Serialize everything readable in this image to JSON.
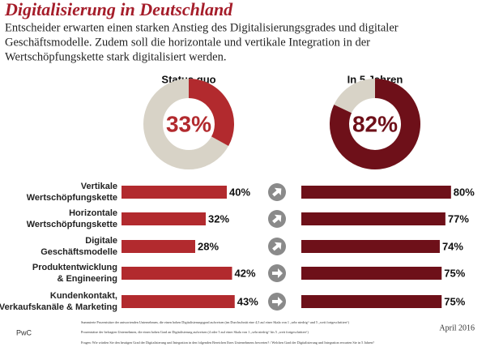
{
  "chart_data": {
    "type": "bar",
    "title": "Digitalisierung in Deutschland",
    "subtitle": [
      "Entscheider erwarten einen starken Anstieg des Digitalisierungsgrades  und digitaler",
      "Geschäftsmodelle. Zudem soll die horizontale und vertikale Integration in der",
      "Wertschöpfungskette stark digitalisiert werden."
    ],
    "categories": [
      [
        "Vertikale",
        "Wertschöpfungskette"
      ],
      [
        "Horizontale",
        "Wertschöpfungskette"
      ],
      [
        "Digitale",
        "Geschäftsmodelle"
      ],
      [
        "Produktentwicklung",
        "& Engineering"
      ],
      [
        "Kundenkontakt,",
        "Verkaufskanäle & Marketing"
      ]
    ],
    "donut_background": "#d8d3c7",
    "series": [
      {
        "name": "Status quo",
        "color": "#b22a2e",
        "total": 33,
        "total_label": "33%",
        "values": [
          40,
          32,
          28,
          42,
          43
        ],
        "value_labels": [
          "40%",
          "32%",
          "28%",
          "42%",
          "43%"
        ]
      },
      {
        "name": "In 5 Jahren",
        "color": "#6e1019",
        "total": 82,
        "total_label": "82%",
        "values": [
          80,
          77,
          74,
          75,
          75
        ],
        "value_labels": [
          "80%",
          "77%",
          "74%",
          "75%",
          "75%"
        ]
      }
    ],
    "footnotes": [
      "Summierte Prozentsätze der antwortenden Unternehmen, die einen hohen Digitalisierungsgrad aufweisen (im Durchschnitt eine 4,5 auf einer Skala von 1 „sehr niedrig“ und 5 „weit fortgeschritten“)",
      "Prozentsätze der befragten Unternehmen, die einen hohen Grad an Digitalisierung aufweisen (4 oder 5 auf einer Skala von 1 „sehr niedrig“ bis 5 „weit fortgeschritten“)",
      "Fragen: Wie würden Sie den heutigen Grad der Digitalisierung und Integration in den folgenden Bereichen Ihres Unternehmens bewerten? / Welchen Grad der Digitalisierung und Integration erwarten Sie in 5 Jahren?"
    ],
    "source": "PwC",
    "date": "April 2016"
  }
}
